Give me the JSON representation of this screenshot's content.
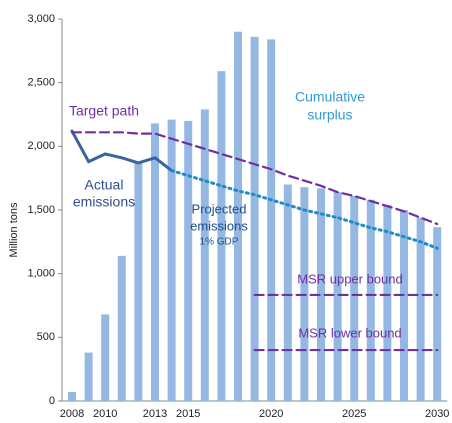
{
  "chart_data": {
    "type": "bar",
    "y_label": "Million tons",
    "categories": [
      "2008",
      null,
      "2010",
      null,
      null,
      "2013",
      null,
      "2015",
      null,
      null,
      null,
      null,
      "2020",
      null,
      null,
      null,
      null,
      "2025",
      null,
      null,
      null,
      null,
      "2030"
    ],
    "ylim": [
      0,
      3000
    ],
    "yticks": [
      0,
      {
        "value": 500,
        "label": "500"
      },
      {
        "value": 1000,
        "label": "1,000"
      },
      {
        "value": 1500,
        "label": "1,500"
      },
      {
        "value": 2000,
        "label": "2,000"
      },
      {
        "value": 2500,
        "label": "2,500"
      },
      {
        "value": 3000,
        "label": "3,000"
      }
    ],
    "color": "#95b8e3",
    "values": [
      70,
      380,
      680,
      1140,
      1870,
      2180,
      2210,
      2200,
      2290,
      2590,
      2900,
      2860,
      2840,
      1700,
      1680,
      1670,
      1640,
      1610,
      1580,
      1540,
      1500,
      1440,
      1365
    ],
    "lines": [
      {
        "name": "Actual emissions",
        "color": "#3a64a0",
        "style": "solid",
        "values": [
          2120,
          1880,
          1940,
          1910,
          1870,
          1910,
          1810,
          null,
          null,
          null,
          null,
          null,
          null,
          null,
          null,
          null,
          null,
          null,
          null,
          null,
          null,
          null,
          null
        ]
      },
      {
        "name": "Projected emissions",
        "color": "#1f8bc9",
        "style": "dotted",
        "values": [
          null,
          null,
          null,
          null,
          null,
          null,
          1810,
          1770,
          1730,
          1690,
          1650,
          1620,
          1580,
          1540,
          1500,
          1470,
          1440,
          1400,
          1360,
          1330,
          1290,
          1250,
          1200
        ]
      },
      {
        "name": "Target path",
        "color": "#7030a0",
        "style": "dashed",
        "values": [
          2110,
          2110,
          2110,
          2110,
          2100,
          2100,
          2060,
          2020,
          1980,
          1940,
          1900,
          1860,
          1820,
          1770,
          1730,
          1690,
          1640,
          1610,
          1570,
          1530,
          1490,
          1440,
          1390
        ]
      },
      {
        "name": "MSR upper bound",
        "color": "#7030a0",
        "style": "dashed",
        "values": [
          null,
          null,
          null,
          null,
          null,
          null,
          null,
          null,
          null,
          null,
          null,
          833,
          833,
          833,
          833,
          833,
          833,
          833,
          833,
          833,
          833,
          833,
          833
        ]
      },
      {
        "name": "MSR lower bound",
        "color": "#7030a0",
        "style": "dashed",
        "values": [
          null,
          null,
          null,
          null,
          null,
          null,
          null,
          null,
          null,
          null,
          null,
          400,
          400,
          400,
          400,
          400,
          400,
          400,
          400,
          400,
          400,
          400,
          400
        ]
      }
    ],
    "annotations": {
      "target": "Target path",
      "surplus": [
        "Cumulative",
        "surplus"
      ],
      "actual": [
        "Actual",
        "emissions"
      ],
      "projected": [
        "Projected",
        "emissions"
      ],
      "gdp": "1% GDP",
      "msr_upper": "MSR upper bound",
      "msr_lower": "MSR lower bound"
    }
  }
}
